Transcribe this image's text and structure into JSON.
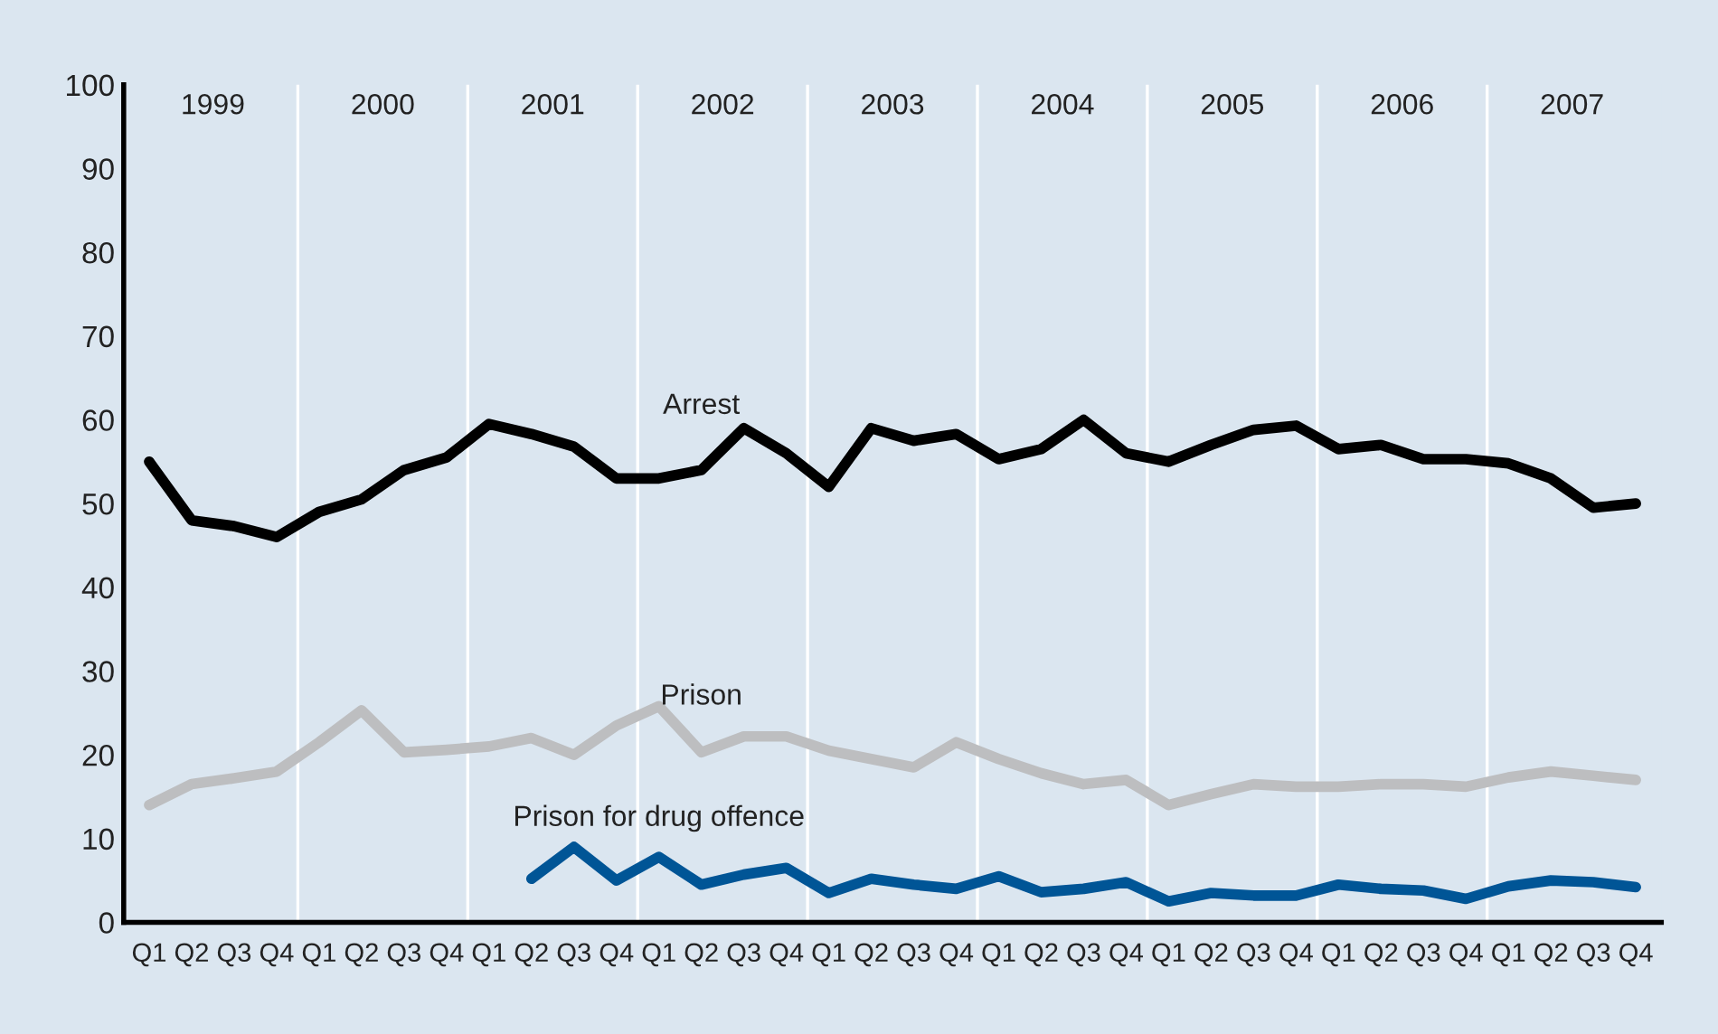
{
  "chart_data": {
    "type": "line",
    "categories": [
      "Q1",
      "Q2",
      "Q3",
      "Q4",
      "Q1",
      "Q2",
      "Q3",
      "Q4",
      "Q1",
      "Q2",
      "Q3",
      "Q4",
      "Q1",
      "Q2",
      "Q3",
      "Q4",
      "Q1",
      "Q2",
      "Q3",
      "Q4",
      "Q1",
      "Q2",
      "Q3",
      "Q4",
      "Q1",
      "Q2",
      "Q3",
      "Q4",
      "Q1",
      "Q2",
      "Q3",
      "Q4",
      "Q1",
      "Q2",
      "Q3",
      "Q4"
    ],
    "annotations": [
      "1999",
      "2000",
      "2001",
      "2002",
      "2003",
      "2004",
      "2005",
      "2006",
      "2007"
    ],
    "series": [
      {
        "name": "Arrest",
        "color": "#000000",
        "values": [
          55,
          48,
          47.3,
          46,
          49,
          50.5,
          54,
          55.5,
          59.5,
          58.3,
          56.8,
          53,
          53,
          54,
          59,
          56,
          52,
          59,
          57.5,
          58.3,
          55.3,
          56.5,
          60,
          56,
          55,
          57,
          58.8,
          59.3,
          56.5,
          57,
          55.3,
          55.3,
          54.8,
          53,
          49.5,
          50
        ]
      },
      {
        "name": "Prison",
        "color": "#bdbec0",
        "values": [
          14,
          16.5,
          17.2,
          18,
          21.5,
          25.3,
          20.3,
          20.6,
          21,
          22,
          20,
          23.5,
          25.8,
          20.3,
          22.2,
          22.2,
          20.5,
          19.5,
          18.5,
          21.5,
          19.5,
          17.8,
          16.5,
          17,
          14,
          15.3,
          16.5,
          16.2,
          16.2,
          16.5,
          16.5,
          16.2,
          17.3,
          18,
          17.5,
          17
        ]
      },
      {
        "name": "Prison for drug offence",
        "color": "#005596",
        "values": [
          null,
          null,
          null,
          null,
          null,
          null,
          null,
          null,
          null,
          5.2,
          9,
          5,
          7.8,
          4.5,
          5.7,
          6.5,
          3.5,
          5.2,
          4.5,
          4,
          5.5,
          3.6,
          4.0,
          4.8,
          2.5,
          3.5,
          3.2,
          3.2,
          4.5,
          4.0,
          3.8,
          2.8,
          4.3,
          5.0,
          4.8,
          4.2
        ]
      }
    ],
    "ylim": [
      0,
      100
    ],
    "yticks": [
      0,
      10,
      20,
      30,
      40,
      50,
      60,
      70,
      80,
      90,
      100
    ],
    "grid": false,
    "legend": false,
    "marker": "none",
    "line_style": "solid"
  }
}
